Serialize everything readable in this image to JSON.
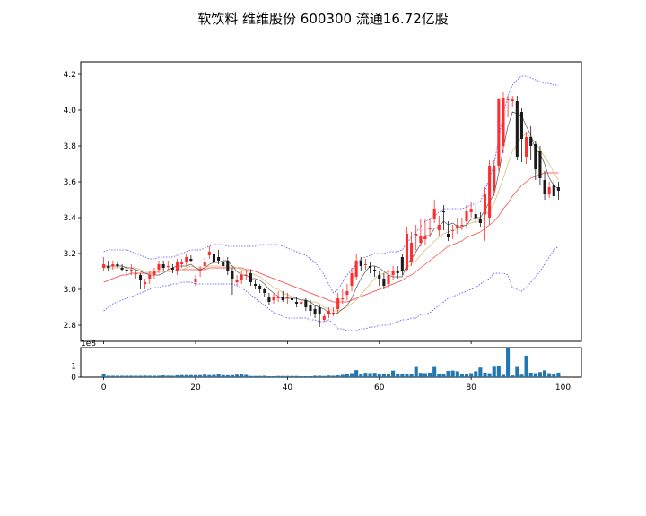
{
  "chart_data": {
    "type": "candlestick",
    "title": "软饮料 维维股份 600300 流通16.72亿股",
    "x": [
      0,
      1,
      2,
      3,
      4,
      5,
      6,
      7,
      8,
      9,
      10,
      11,
      12,
      13,
      14,
      15,
      16,
      17,
      18,
      19,
      20,
      21,
      22,
      23,
      24,
      25,
      26,
      27,
      28,
      29,
      30,
      31,
      32,
      33,
      34,
      35,
      36,
      37,
      38,
      39,
      40,
      41,
      42,
      43,
      44,
      45,
      46,
      47,
      48,
      49,
      50,
      51,
      52,
      53,
      54,
      55,
      56,
      57,
      58,
      59,
      60,
      61,
      62,
      63,
      64,
      65,
      66,
      67,
      68,
      69,
      70,
      71,
      72,
      73,
      74,
      75,
      76,
      77,
      78,
      79,
      80,
      81,
      82,
      83,
      84,
      85,
      86,
      87,
      88,
      89,
      90,
      91,
      92,
      93,
      94,
      95,
      96,
      97,
      98,
      99
    ],
    "open": [
      3.12,
      3.13,
      3.13,
      3.14,
      3.12,
      3.11,
      3.1,
      3.09,
      3.08,
      3.03,
      3.06,
      3.08,
      3.11,
      3.14,
      3.13,
      3.12,
      3.1,
      3.14,
      3.15,
      3.17,
      3.04,
      3.1,
      3.13,
      3.19,
      3.2,
      3.18,
      3.15,
      3.16,
      3.1,
      3.04,
      3.05,
      3.08,
      3.09,
      3.03,
      3.02,
      3.0,
      2.96,
      2.94,
      2.95,
      2.96,
      2.95,
      2.95,
      2.93,
      2.92,
      2.94,
      2.91,
      2.89,
      2.9,
      2.83,
      2.86,
      2.87,
      2.89,
      2.95,
      2.97,
      3.02,
      3.07,
      3.16,
      3.14,
      3.13,
      3.11,
      3.08,
      3.06,
      3.03,
      3.08,
      3.1,
      3.18,
      3.11,
      3.15,
      3.3,
      3.26,
      3.28,
      3.34,
      3.39,
      3.33,
      3.44,
      3.31,
      3.33,
      3.34,
      3.36,
      3.38,
      3.43,
      3.42,
      3.39,
      3.42,
      3.4,
      3.55,
      3.69,
      3.8,
      4.06,
      4.05,
      4.05,
      3.99,
      3.74,
      3.85,
      3.81,
      3.77,
      3.61,
      3.53,
      3.58,
      3.57
    ],
    "close": [
      3.14,
      3.12,
      3.14,
      3.13,
      3.11,
      3.1,
      3.11,
      3.09,
      3.05,
      3.04,
      3.08,
      3.1,
      3.14,
      3.12,
      3.13,
      3.11,
      3.15,
      3.15,
      3.18,
      3.16,
      3.06,
      3.11,
      3.15,
      3.21,
      3.15,
      3.16,
      3.13,
      3.1,
      3.06,
      3.05,
      3.08,
      3.08,
      3.04,
      3.02,
      3.0,
      2.98,
      2.93,
      2.96,
      2.96,
      2.94,
      2.96,
      2.94,
      2.92,
      2.93,
      2.9,
      2.88,
      2.86,
      2.86,
      2.85,
      2.88,
      2.87,
      2.95,
      2.95,
      2.99,
      3.09,
      3.16,
      3.13,
      3.14,
      3.12,
      3.1,
      3.06,
      3.02,
      3.08,
      3.1,
      3.09,
      3.1,
      3.31,
      3.26,
      3.31,
      3.3,
      3.3,
      3.34,
      3.45,
      3.36,
      3.43,
      3.29,
      3.33,
      3.36,
      3.36,
      3.44,
      3.45,
      3.4,
      3.37,
      3.53,
      3.69,
      3.69,
      4.06,
      4.07,
      4.06,
      4.06,
      3.74,
      3.84,
      3.85,
      3.8,
      3.67,
      3.62,
      3.53,
      3.57,
      3.52,
      3.55
    ],
    "high": [
      3.18,
      3.16,
      3.16,
      3.15,
      3.14,
      3.13,
      3.14,
      3.11,
      3.09,
      3.06,
      3.1,
      3.12,
      3.16,
      3.16,
      3.16,
      3.14,
      3.17,
      3.17,
      3.2,
      3.19,
      3.08,
      3.13,
      3.18,
      3.24,
      3.27,
      3.22,
      3.18,
      3.18,
      3.12,
      3.08,
      3.1,
      3.11,
      3.11,
      3.05,
      3.03,
      3.01,
      2.98,
      2.98,
      2.99,
      2.99,
      2.98,
      2.97,
      2.96,
      2.95,
      2.95,
      2.94,
      2.91,
      2.91,
      2.86,
      2.9,
      2.9,
      2.98,
      3.0,
      3.03,
      3.12,
      3.2,
      3.18,
      3.17,
      3.15,
      3.13,
      3.1,
      3.09,
      3.11,
      3.13,
      3.13,
      3.2,
      3.35,
      3.32,
      3.36,
      3.39,
      3.39,
      3.4,
      3.5,
      3.41,
      3.47,
      3.38,
      3.36,
      3.4,
      3.4,
      3.47,
      3.49,
      3.47,
      3.43,
      3.57,
      3.72,
      3.72,
      4.07,
      4.1,
      4.08,
      4.08,
      4.08,
      4.01,
      3.88,
      3.91,
      3.83,
      3.8,
      3.66,
      3.6,
      3.61,
      3.6
    ],
    "low": [
      3.1,
      3.1,
      3.11,
      3.12,
      3.1,
      3.08,
      3.08,
      3.06,
      3.0,
      3.0,
      3.03,
      3.06,
      3.09,
      3.1,
      3.11,
      3.09,
      3.08,
      3.12,
      3.13,
      3.15,
      3.02,
      3.07,
      3.1,
      3.17,
      3.12,
      3.14,
      3.11,
      3.08,
      2.97,
      3.02,
      3.03,
      3.05,
      3.02,
      3.0,
      2.98,
      2.96,
      2.91,
      2.92,
      2.93,
      2.93,
      2.92,
      2.92,
      2.9,
      2.9,
      2.88,
      2.85,
      2.84,
      2.79,
      2.82,
      2.84,
      2.85,
      2.86,
      2.92,
      2.94,
      2.99,
      3.05,
      3.1,
      3.11,
      3.09,
      3.07,
      3.02,
      3.0,
      3.01,
      3.05,
      3.06,
      3.08,
      3.1,
      3.13,
      3.22,
      3.24,
      3.25,
      3.29,
      3.37,
      3.3,
      3.33,
      3.27,
      3.28,
      3.31,
      3.33,
      3.34,
      3.4,
      3.37,
      3.35,
      3.27,
      3.36,
      3.52,
      3.66,
      3.76,
      3.96,
      4.02,
      3.72,
      3.71,
      3.7,
      3.72,
      3.61,
      3.58,
      3.5,
      3.51,
      3.5,
      3.5
    ],
    "ma_short": [
      3.13,
      3.13,
      3.13,
      3.13,
      3.13,
      3.12,
      3.12,
      3.11,
      3.1,
      3.09,
      3.08,
      3.08,
      3.08,
      3.09,
      3.11,
      3.12,
      3.13,
      3.13,
      3.13,
      3.14,
      3.12,
      3.11,
      3.12,
      3.14,
      3.15,
      3.15,
      3.16,
      3.16,
      3.13,
      3.1,
      3.08,
      3.08,
      3.06,
      3.06,
      3.05,
      3.03,
      3.0,
      2.98,
      2.96,
      2.95,
      2.95,
      2.95,
      2.95,
      2.94,
      2.94,
      2.93,
      2.91,
      2.9,
      2.89,
      2.87,
      2.86,
      2.87,
      2.89,
      2.91,
      2.95,
      3.01,
      3.06,
      3.1,
      3.13,
      3.13,
      3.12,
      3.1,
      3.08,
      3.07,
      3.07,
      3.07,
      3.14,
      3.17,
      3.21,
      3.25,
      3.3,
      3.3,
      3.34,
      3.35,
      3.38,
      3.36,
      3.37,
      3.35,
      3.35,
      3.36,
      3.39,
      3.4,
      3.4,
      3.44,
      3.49,
      3.53,
      3.65,
      3.79,
      3.91,
      3.99,
      3.98,
      3.97,
      3.91,
      3.86,
      3.78,
      3.76,
      3.7,
      3.62,
      3.58,
      3.56
    ],
    "ma_mid": [
      3.12,
      3.12,
      3.12,
      3.12,
      3.12,
      3.12,
      3.12,
      3.12,
      3.11,
      3.1,
      3.1,
      3.09,
      3.1,
      3.1,
      3.1,
      3.1,
      3.11,
      3.11,
      3.12,
      3.13,
      3.12,
      3.12,
      3.12,
      3.13,
      3.13,
      3.13,
      3.13,
      3.13,
      3.13,
      3.12,
      3.11,
      3.1,
      3.09,
      3.08,
      3.07,
      3.05,
      3.03,
      3.01,
      3.0,
      2.98,
      2.97,
      2.96,
      2.95,
      2.94,
      2.94,
      2.93,
      2.93,
      2.92,
      2.9,
      2.89,
      2.88,
      2.88,
      2.89,
      2.9,
      2.92,
      2.94,
      2.97,
      3.0,
      3.03,
      3.06,
      3.08,
      3.09,
      3.1,
      3.1,
      3.1,
      3.1,
      3.12,
      3.14,
      3.16,
      3.19,
      3.22,
      3.24,
      3.27,
      3.29,
      3.31,
      3.32,
      3.33,
      3.34,
      3.35,
      3.36,
      3.37,
      3.38,
      3.38,
      3.41,
      3.44,
      3.48,
      3.55,
      3.62,
      3.7,
      3.77,
      3.81,
      3.85,
      3.87,
      3.85,
      3.82,
      3.78,
      3.74,
      3.7,
      3.65,
      3.61
    ],
    "ma_long": [
      3.04,
      3.05,
      3.06,
      3.07,
      3.08,
      3.08,
      3.09,
      3.09,
      3.09,
      3.09,
      3.09,
      3.09,
      3.1,
      3.1,
      3.1,
      3.1,
      3.11,
      3.11,
      3.11,
      3.11,
      3.11,
      3.11,
      3.11,
      3.12,
      3.12,
      3.12,
      3.12,
      3.12,
      3.12,
      3.12,
      3.12,
      3.11,
      3.11,
      3.1,
      3.09,
      3.08,
      3.07,
      3.06,
      3.05,
      3.04,
      3.03,
      3.02,
      3.01,
      3.0,
      2.99,
      2.98,
      2.97,
      2.96,
      2.95,
      2.94,
      2.93,
      2.93,
      2.93,
      2.93,
      2.94,
      2.95,
      2.96,
      2.97,
      2.98,
      2.99,
      3.0,
      3.01,
      3.02,
      3.03,
      3.04,
      3.05,
      3.07,
      3.08,
      3.1,
      3.12,
      3.14,
      3.16,
      3.18,
      3.2,
      3.22,
      3.24,
      3.25,
      3.26,
      3.27,
      3.29,
      3.3,
      3.31,
      3.32,
      3.34,
      3.36,
      3.38,
      3.41,
      3.45,
      3.48,
      3.52,
      3.55,
      3.58,
      3.6,
      3.62,
      3.63,
      3.64,
      3.65,
      3.65,
      3.65,
      3.65
    ],
    "boll_upper": [
      3.21,
      3.22,
      3.22,
      3.22,
      3.22,
      3.22,
      3.21,
      3.2,
      3.19,
      3.18,
      3.17,
      3.17,
      3.18,
      3.18,
      3.18,
      3.18,
      3.19,
      3.2,
      3.21,
      3.22,
      3.22,
      3.22,
      3.23,
      3.24,
      3.25,
      3.25,
      3.25,
      3.24,
      3.24,
      3.24,
      3.24,
      3.24,
      3.24,
      3.24,
      3.25,
      3.25,
      3.25,
      3.25,
      3.25,
      3.24,
      3.23,
      3.22,
      3.21,
      3.2,
      3.19,
      3.17,
      3.15,
      3.12,
      3.08,
      3.03,
      2.98,
      3.0,
      3.04,
      3.08,
      3.11,
      3.14,
      3.17,
      3.18,
      3.19,
      3.2,
      3.2,
      3.2,
      3.21,
      3.21,
      3.21,
      3.22,
      3.26,
      3.29,
      3.32,
      3.35,
      3.38,
      3.39,
      3.41,
      3.43,
      3.45,
      3.45,
      3.45,
      3.45,
      3.45,
      3.46,
      3.47,
      3.48,
      3.49,
      3.55,
      3.62,
      3.7,
      3.84,
      3.98,
      4.08,
      4.14,
      4.17,
      4.19,
      4.19,
      4.18,
      4.17,
      4.16,
      4.15,
      4.15,
      4.14,
      4.14
    ],
    "boll_lower": [
      2.88,
      2.9,
      2.92,
      2.93,
      2.94,
      2.95,
      2.96,
      2.97,
      2.98,
      2.99,
      3.0,
      3.01,
      3.01,
      3.02,
      3.02,
      3.03,
      3.03,
      3.04,
      3.04,
      3.04,
      3.03,
      3.03,
      3.03,
      3.03,
      3.03,
      3.03,
      3.03,
      3.03,
      3.03,
      3.02,
      3.01,
      2.99,
      2.97,
      2.95,
      2.93,
      2.91,
      2.89,
      2.87,
      2.86,
      2.85,
      2.84,
      2.84,
      2.84,
      2.84,
      2.84,
      2.83,
      2.83,
      2.82,
      2.82,
      2.83,
      2.81,
      2.78,
      2.78,
      2.77,
      2.77,
      2.77,
      2.78,
      2.78,
      2.79,
      2.79,
      2.8,
      2.8,
      2.8,
      2.81,
      2.82,
      2.83,
      2.83,
      2.84,
      2.84,
      2.86,
      2.86,
      2.87,
      2.89,
      2.91,
      2.93,
      2.95,
      2.96,
      2.97,
      2.98,
      2.99,
      3.0,
      3.01,
      3.03,
      3.05,
      3.06,
      3.09,
      3.09,
      3.09,
      3.08,
      3.01,
      3.0,
      2.99,
      3.01,
      3.04,
      3.07,
      3.1,
      3.14,
      3.18,
      3.22,
      3.24
    ],
    "volume_values": [
      0.3,
      0.12,
      0.12,
      0.12,
      0.12,
      0.12,
      0.12,
      0.12,
      0.12,
      0.13,
      0.12,
      0.12,
      0.12,
      0.15,
      0.13,
      0.12,
      0.16,
      0.18,
      0.18,
      0.18,
      0.18,
      0.18,
      0.22,
      0.18,
      0.2,
      0.25,
      0.18,
      0.17,
      0.18,
      0.22,
      0.25,
      0.2,
      0.1,
      0.1,
      0.1,
      0.12,
      0.08,
      0.08,
      0.1,
      0.1,
      0.1,
      0.1,
      0.1,
      0.08,
      0.08,
      0.08,
      0.12,
      0.12,
      0.1,
      0.14,
      0.12,
      0.15,
      0.2,
      0.28,
      0.35,
      0.62,
      0.28,
      0.38,
      0.36,
      0.38,
      0.3,
      0.25,
      0.25,
      0.58,
      0.25,
      0.25,
      0.28,
      0.32,
      0.9,
      0.38,
      0.35,
      0.4,
      0.9,
      0.3,
      0.28,
      0.55,
      0.58,
      0.52,
      0.25,
      0.28,
      0.35,
      0.52,
      0.85,
      0.4,
      0.35,
      0.92,
      0.95,
      0.2,
      2.6,
      0.15,
      0.9,
      0.22,
      1.9,
      0.4,
      0.35,
      0.45,
      0.6,
      0.35,
      0.28,
      0.4
    ],
    "ylim": [
      2.71,
      4.27
    ],
    "y_ticks": [
      "2.8",
      "3.0",
      "3.2",
      "3.4",
      "3.6",
      "3.8",
      "4.0",
      "4.2"
    ],
    "x_ticks": [
      "0",
      "20",
      "40",
      "60",
      "80",
      "100"
    ],
    "xlim": [
      -5,
      104
    ],
    "volume_ylim": [
      0,
      2.6
    ],
    "volume_ticks": [
      "0",
      "1"
    ],
    "volume_offset_text": "1e8",
    "colors": {
      "up": "#ff2d2d",
      "down": "#1a1a1a",
      "ma_short": "#555555",
      "ma_mid": "#d6b870",
      "ma_long": "#ff3b3b",
      "boll": "#4a4aff",
      "volume": "#1f77b4"
    }
  }
}
